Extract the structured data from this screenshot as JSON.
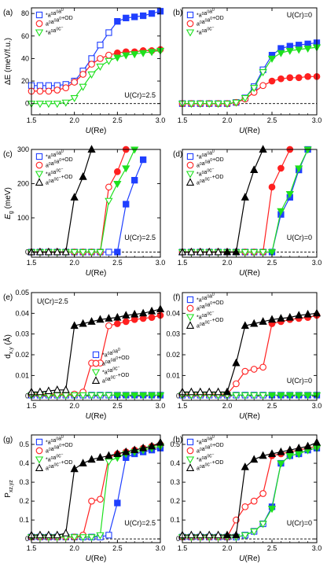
{
  "chart_data": [
    {
      "type": "line",
      "panel_label": "(a)",
      "annotation": "U(Cr)=2.5",
      "xlabel": "U(Re)",
      "ylabel": "ΔE (meV/f.u.)",
      "xlim": [
        1.5,
        3.0
      ],
      "ylim": [
        -10,
        85
      ],
      "xticks": [
        "1.5",
        "2.0",
        "2.5",
        "3.0"
      ],
      "yticks": [
        "0",
        "20",
        "40",
        "60",
        "80"
      ],
      "legend": "top-left",
      "grid": false,
      "x": [
        1.5,
        1.6,
        1.7,
        1.8,
        1.9,
        2.0,
        2.1,
        2.2,
        2.3,
        2.4,
        2.5,
        2.6,
        2.7,
        2.8,
        2.9,
        3.0
      ],
      "series": [
        {
          "name": "*a⁰a⁰a⁰",
          "color": "#1f3fff",
          "marker": "square",
          "values": [
            16,
            16,
            16,
            16,
            17,
            20,
            29,
            40,
            52,
            63,
            73,
            76,
            77,
            78,
            80,
            82
          ]
        },
        {
          "name": "a⁰a⁰a⁰+OD",
          "color": "#ff2020",
          "marker": "circle",
          "values": [
            11,
            11,
            11,
            12,
            14,
            19,
            26,
            35,
            40,
            43,
            45,
            46,
            46,
            47,
            47,
            48
          ]
        },
        {
          "name": "*a⁰a⁰c⁻",
          "color": "#1ee01e",
          "marker": "triangle-down",
          "values": [
            0,
            0,
            0,
            0,
            1,
            5,
            15,
            26,
            33,
            38,
            41,
            43,
            44,
            45,
            46,
            47
          ]
        }
      ]
    },
    {
      "type": "line",
      "panel_label": "(b)",
      "annotation": "U(Cr)=0",
      "xlabel": "U(Re)",
      "ylabel": "",
      "xlim": [
        1.5,
        3.0
      ],
      "ylim": [
        -10,
        85
      ],
      "xticks": [
        "1.5",
        "2.0",
        "2.5",
        "3.0"
      ],
      "yticks": [],
      "legend": "top-left",
      "grid": false,
      "x": [
        1.5,
        1.6,
        1.7,
        1.8,
        1.9,
        2.0,
        2.1,
        2.2,
        2.3,
        2.4,
        2.5,
        2.6,
        2.7,
        2.8,
        2.9,
        3.0
      ],
      "series": [
        {
          "name": "*a⁰a⁰a⁰",
          "color": "#1f3fff",
          "marker": "square",
          "values": [
            0,
            0,
            0,
            0,
            0,
            0,
            1,
            5,
            15,
            30,
            43,
            49,
            51,
            52,
            53,
            54
          ]
        },
        {
          "name": "a⁰a⁰a⁰+OD",
          "color": "#ff2020",
          "marker": "circle",
          "values": [
            0,
            0,
            0,
            0,
            0,
            0,
            1,
            4,
            10,
            16,
            20,
            22,
            23,
            23,
            24,
            24
          ]
        },
        {
          "name": "*a⁰a⁰c⁻",
          "color": "#1ee01e",
          "marker": "triangle-down",
          "values": [
            0,
            0,
            0,
            0,
            0,
            0,
            1,
            5,
            14,
            28,
            40,
            45,
            47,
            48,
            49,
            50
          ]
        }
      ]
    },
    {
      "type": "line",
      "panel_label": "(c)",
      "annotation": "U(Cr)=2.5",
      "xlabel": "U(Re)",
      "ylabel": "Eg (meV)",
      "xlim": [
        1.5,
        3.0
      ],
      "ylim": [
        -15,
        300
      ],
      "xticks": [
        "1.5",
        "2.0",
        "2.5",
        "3.0"
      ],
      "yticks": [
        "0",
        "100",
        "200",
        "300"
      ],
      "legend": "top-left",
      "grid": false,
      "series": [
        {
          "name": "*a⁰a⁰a⁰",
          "color": "#1f3fff",
          "marker": "square",
          "x": [
            1.5,
            1.6,
            1.7,
            1.8,
            1.9,
            2.0,
            2.1,
            2.2,
            2.3,
            2.4,
            2.5,
            2.6,
            2.7,
            2.8
          ],
          "values": [
            0,
            0,
            0,
            0,
            0,
            0,
            0,
            0,
            0,
            0,
            0,
            140,
            210,
            270
          ]
        },
        {
          "name": "a⁰a⁰a⁰+OD",
          "color": "#ff2020",
          "marker": "circle",
          "x": [
            1.5,
            1.6,
            1.7,
            1.8,
            1.9,
            2.0,
            2.1,
            2.2,
            2.3,
            2.4,
            2.5,
            2.6
          ],
          "values": [
            0,
            0,
            0,
            0,
            0,
            0,
            0,
            0,
            0,
            190,
            235,
            300
          ]
        },
        {
          "name": "*a⁰a⁰c⁻",
          "color": "#1ee01e",
          "marker": "triangle-down",
          "x": [
            1.5,
            1.6,
            1.7,
            1.8,
            1.9,
            2.0,
            2.1,
            2.2,
            2.3,
            2.4,
            2.5,
            2.6,
            2.7
          ],
          "values": [
            0,
            0,
            0,
            0,
            0,
            0,
            0,
            0,
            0,
            150,
            200,
            245,
            300
          ]
        },
        {
          "name": "a⁰a⁰c⁻+OD",
          "color": "#000000",
          "marker": "triangle-up",
          "x": [
            1.5,
            1.6,
            1.7,
            1.8,
            1.9,
            2.0,
            2.1,
            2.2
          ],
          "values": [
            0,
            0,
            0,
            0,
            0,
            160,
            220,
            300
          ]
        }
      ]
    },
    {
      "type": "line",
      "panel_label": "(d)",
      "annotation": "U(Cr)=0",
      "xlabel": "U(Re)",
      "ylabel": "",
      "xlim": [
        1.5,
        3.0
      ],
      "ylim": [
        -15,
        300
      ],
      "xticks": [
        "1.5",
        "2.0",
        "2.5",
        "3.0"
      ],
      "yticks": [],
      "legend": "top-left",
      "grid": false,
      "series": [
        {
          "name": "*a⁰a⁰a⁰",
          "color": "#1f3fff",
          "marker": "square",
          "x": [
            1.5,
            1.6,
            1.7,
            1.8,
            1.9,
            2.0,
            2.1,
            2.2,
            2.3,
            2.4,
            2.5,
            2.6,
            2.7,
            2.8,
            2.9
          ],
          "values": [
            0,
            0,
            0,
            0,
            0,
            0,
            0,
            0,
            0,
            0,
            0,
            110,
            160,
            240,
            300
          ]
        },
        {
          "name": "a⁰a⁰a⁰+OD",
          "color": "#ff2020",
          "marker": "circle",
          "x": [
            1.5,
            1.6,
            1.7,
            1.8,
            1.9,
            2.0,
            2.1,
            2.2,
            2.3,
            2.4,
            2.5,
            2.6,
            2.7
          ],
          "values": [
            0,
            0,
            0,
            0,
            0,
            0,
            0,
            0,
            0,
            0,
            190,
            245,
            300
          ]
        },
        {
          "name": "*a⁰a⁰c⁻",
          "color": "#1ee01e",
          "marker": "triangle-down",
          "x": [
            1.5,
            1.6,
            1.7,
            1.8,
            1.9,
            2.0,
            2.1,
            2.2,
            2.3,
            2.4,
            2.5,
            2.6,
            2.7,
            2.8,
            2.9
          ],
          "values": [
            0,
            0,
            0,
            0,
            0,
            0,
            0,
            0,
            0,
            0,
            0,
            120,
            170,
            245,
            300
          ]
        },
        {
          "name": "a⁰a⁰c⁻+OD",
          "color": "#000000",
          "marker": "triangle-up",
          "x": [
            1.5,
            1.6,
            1.7,
            1.8,
            1.9,
            2.0,
            2.1,
            2.2,
            2.3,
            2.4
          ],
          "values": [
            0,
            0,
            0,
            0,
            0,
            0,
            0,
            160,
            240,
            300
          ]
        }
      ]
    },
    {
      "type": "line",
      "panel_label": "(e)",
      "annotation": "U(Cr)=2.5",
      "xlabel": "U(Re)",
      "ylabel": "d_{x,y} (Å)",
      "xlim": [
        1.5,
        3.0
      ],
      "ylim": [
        -0.002,
        0.05
      ],
      "xticks": [
        "1.5",
        "2.0",
        "2.5",
        "3.0"
      ],
      "yticks": [
        "0",
        "0.01",
        "0.02",
        "0.03",
        "0.04",
        "0.05"
      ],
      "legend": "bottom-right",
      "grid": false,
      "x": [
        1.5,
        1.6,
        1.7,
        1.8,
        1.9,
        2.0,
        2.1,
        2.2,
        2.3,
        2.4,
        2.5,
        2.6,
        2.7,
        2.8,
        2.9,
        3.0
      ],
      "series": [
        {
          "name": "*a⁰a⁰a⁰",
          "color": "#1f3fff",
          "marker": "square",
          "values": [
            0.0005,
            0.0005,
            0.0005,
            0.0005,
            0.0005,
            0.0005,
            0.0005,
            0.0005,
            0.0005,
            0.0005,
            0.0005,
            0.0005,
            0.0005,
            0.0005,
            0.0005,
            0.0005
          ]
        },
        {
          "name": "a⁰a⁰a⁰+OD",
          "color": "#ff2020",
          "marker": "circle",
          "values": [
            0.001,
            0.001,
            0.001,
            0.001,
            0.001,
            0.001,
            0.002,
            0.016,
            0.016,
            0.034,
            0.035,
            0.036,
            0.037,
            0.0375,
            0.038,
            0.039
          ]
        },
        {
          "name": "*a⁰a⁰c⁻",
          "color": "#1ee01e",
          "marker": "triangle-down",
          "values": [
            0.0005,
            0.0005,
            0.0005,
            0.0005,
            0.0005,
            0.0005,
            0.0005,
            0.0005,
            0.0005,
            0.0005,
            0.0005,
            0.0005,
            0.0005,
            0.0005,
            0.0005,
            0.0005
          ]
        },
        {
          "name": "a⁰a⁰c⁻+OD",
          "color": "#000000",
          "marker": "triangle-up",
          "values": [
            0.002,
            0.002,
            0.0025,
            0.003,
            0.003,
            0.034,
            0.035,
            0.036,
            0.037,
            0.0375,
            0.038,
            0.039,
            0.0395,
            0.04,
            0.041,
            0.042
          ]
        }
      ]
    },
    {
      "type": "line",
      "panel_label": "(f)",
      "annotation": "U(Cr)=0",
      "xlabel": "U(Re)",
      "ylabel": "",
      "xlim": [
        1.5,
        3.0
      ],
      "ylim": [
        -0.002,
        0.05
      ],
      "xticks": [
        "1.5",
        "2.0",
        "2.5",
        "3.0"
      ],
      "yticks": [
        "0",
        "0.01",
        "0.02",
        "0.03",
        "0.04"
      ],
      "legend": "top-left",
      "grid": false,
      "x": [
        1.5,
        1.6,
        1.7,
        1.8,
        1.9,
        2.0,
        2.1,
        2.2,
        2.3,
        2.4,
        2.5,
        2.6,
        2.7,
        2.8,
        2.9,
        3.0
      ],
      "series": [
        {
          "name": "*a⁰a⁰a⁰",
          "color": "#1f3fff",
          "marker": "square",
          "values": [
            0.0005,
            0.0005,
            0.0005,
            0.0005,
            0.0005,
            0.0005,
            0.0005,
            0.0005,
            0.0005,
            0.0005,
            0.0005,
            0.0005,
            0.0005,
            0.0005,
            0.0005,
            0.0005
          ]
        },
        {
          "name": "a⁰a⁰a⁰+OD",
          "color": "#ff2020",
          "marker": "circle",
          "values": [
            0.001,
            0.001,
            0.001,
            0.001,
            0.001,
            0.001,
            0.006,
            0.012,
            0.013,
            0.014,
            0.035,
            0.036,
            0.037,
            0.0375,
            0.038,
            0.039
          ]
        },
        {
          "name": "*a⁰a⁰c⁻",
          "color": "#1ee01e",
          "marker": "triangle-down",
          "values": [
            0.0005,
            0.0005,
            0.0005,
            0.0005,
            0.0005,
            0.0005,
            0.0005,
            0.0005,
            0.0005,
            0.0005,
            0.0005,
            0.0005,
            0.0005,
            0.0005,
            0.0005,
            0.0005
          ]
        },
        {
          "name": "a⁰a⁰c⁻+OD",
          "color": "#000000",
          "marker": "triangle-up",
          "values": [
            0.002,
            0.002,
            0.002,
            0.002,
            0.002,
            0.002,
            0.016,
            0.034,
            0.035,
            0.036,
            0.037,
            0.0375,
            0.038,
            0.039,
            0.0395,
            0.04
          ]
        }
      ]
    },
    {
      "type": "line",
      "panel_label": "(g)",
      "annotation": "U(Cr)=2.5",
      "xlabel": "U(Re)",
      "ylabel": "P_{xz,yz}",
      "xlim": [
        1.5,
        3.0
      ],
      "ylim": [
        -0.02,
        0.55
      ],
      "xticks": [
        "1.5",
        "2.0",
        "2.5",
        "3.0"
      ],
      "yticks": [
        "0",
        "0.1",
        "0.2",
        "0.3",
        "0.4",
        "0.5"
      ],
      "legend": "top-left",
      "grid": false,
      "x": [
        1.5,
        1.6,
        1.7,
        1.8,
        1.9,
        2.0,
        2.1,
        2.2,
        2.3,
        2.4,
        2.5,
        2.6,
        2.7,
        2.8,
        2.9,
        3.0
      ],
      "series": [
        {
          "name": "*a⁰a⁰a⁰",
          "color": "#1f3fff",
          "marker": "square",
          "values": [
            0.01,
            0.01,
            0.01,
            0.01,
            0.01,
            0.01,
            0.01,
            0.01,
            0.01,
            0.02,
            0.19,
            0.43,
            0.45,
            0.46,
            0.47,
            0.48
          ]
        },
        {
          "name": "a⁰a⁰a⁰+OD",
          "color": "#ff2020",
          "marker": "circle",
          "values": [
            0.01,
            0.01,
            0.01,
            0.01,
            0.01,
            0.01,
            0.02,
            0.2,
            0.21,
            0.43,
            0.45,
            0.46,
            0.47,
            0.48,
            0.49,
            0.5
          ]
        },
        {
          "name": "*a⁰a⁰c⁻",
          "color": "#1ee01e",
          "marker": "triangle-down",
          "values": [
            0.01,
            0.01,
            0.01,
            0.01,
            0.01,
            0.01,
            0.01,
            0.01,
            0.02,
            0.41,
            0.43,
            0.45,
            0.46,
            0.47,
            0.48,
            0.49
          ]
        },
        {
          "name": "a⁰a⁰c⁻+OD",
          "color": "#000000",
          "marker": "triangle-up",
          "values": [
            0.02,
            0.02,
            0.02,
            0.02,
            0.03,
            0.37,
            0.4,
            0.42,
            0.43,
            0.44,
            0.45,
            0.46,
            0.47,
            0.48,
            0.49,
            0.51
          ]
        }
      ]
    },
    {
      "type": "line",
      "panel_label": "(h)",
      "annotation": "U(Cr)=0",
      "xlabel": "U(Re)",
      "ylabel": "",
      "xlim": [
        1.5,
        3.0
      ],
      "ylim": [
        -0.02,
        0.55
      ],
      "xticks": [
        "1.5",
        "2.0",
        "2.5",
        "3.0"
      ],
      "yticks": [
        "0",
        "0.1",
        "0.2",
        "0.3",
        "0.4",
        "0.5"
      ],
      "legend": "top-left",
      "grid": false,
      "x": [
        1.5,
        1.6,
        1.7,
        1.8,
        1.9,
        2.0,
        2.1,
        2.2,
        2.3,
        2.4,
        2.5,
        2.6,
        2.7,
        2.8,
        2.9,
        3.0
      ],
      "series": [
        {
          "name": "*a⁰a⁰a⁰",
          "color": "#1f3fff",
          "marker": "square",
          "values": [
            0.01,
            0.01,
            0.01,
            0.01,
            0.01,
            0.01,
            0.01,
            0.02,
            0.04,
            0.08,
            0.17,
            0.4,
            0.44,
            0.45,
            0.47,
            0.48
          ]
        },
        {
          "name": "a⁰a⁰a⁰+OD",
          "color": "#ff2020",
          "marker": "circle",
          "values": [
            0.01,
            0.01,
            0.01,
            0.01,
            0.01,
            0.01,
            0.1,
            0.17,
            0.2,
            0.24,
            0.44,
            0.45,
            0.46,
            0.47,
            0.48,
            0.49
          ]
        },
        {
          "name": "*a⁰a⁰c⁻",
          "color": "#1ee01e",
          "marker": "triangle-down",
          "values": [
            0.01,
            0.01,
            0.01,
            0.01,
            0.01,
            0.01,
            0.01,
            0.02,
            0.04,
            0.08,
            0.16,
            0.4,
            0.44,
            0.45,
            0.47,
            0.48
          ]
        },
        {
          "name": "a⁰a⁰c⁻+OD",
          "color": "#000000",
          "marker": "triangle-up",
          "values": [
            0.02,
            0.02,
            0.02,
            0.02,
            0.02,
            0.02,
            0.02,
            0.38,
            0.42,
            0.44,
            0.45,
            0.46,
            0.47,
            0.48,
            0.49,
            0.51
          ]
        }
      ]
    }
  ]
}
